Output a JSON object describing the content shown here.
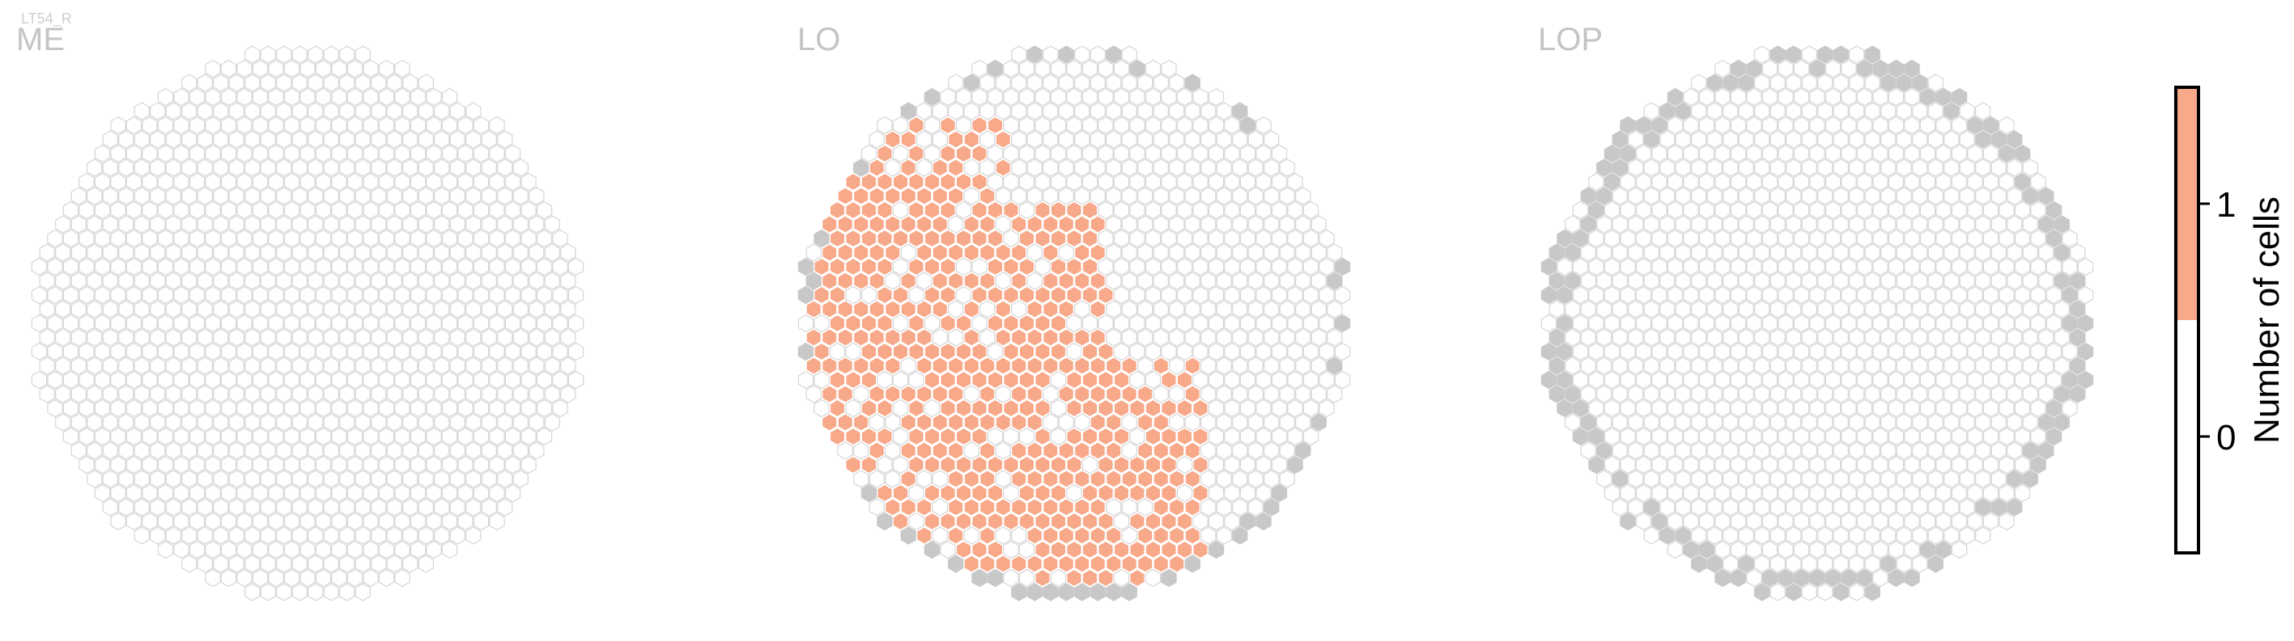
{
  "header": {
    "cell_type": "LT54_R"
  },
  "colors": {
    "empty_stroke": "#d6d6d6",
    "empty_fill": "#ffffff",
    "boundary_fill": "#c8c8c8",
    "one_cell_fill": "#f7a98a",
    "one_cell_stroke": "#ffffff",
    "colorbar_outline": "#000000"
  },
  "chart_data": {
    "type": "heatmap",
    "description_key": "hexagonal eye map, three neuropils",
    "panels": [
      {
        "title": "ME"
      },
      {
        "title": "LO"
      },
      {
        "title": "LOP"
      }
    ],
    "colorbar": {
      "label": "Number of cells",
      "ticks": [
        "0",
        "1"
      ],
      "range": [
        0,
        1
      ],
      "bins": [
        {
          "value": 0,
          "color": "#ffffff"
        },
        {
          "value": 1,
          "color": "#f7a98a"
        }
      ]
    }
  }
}
